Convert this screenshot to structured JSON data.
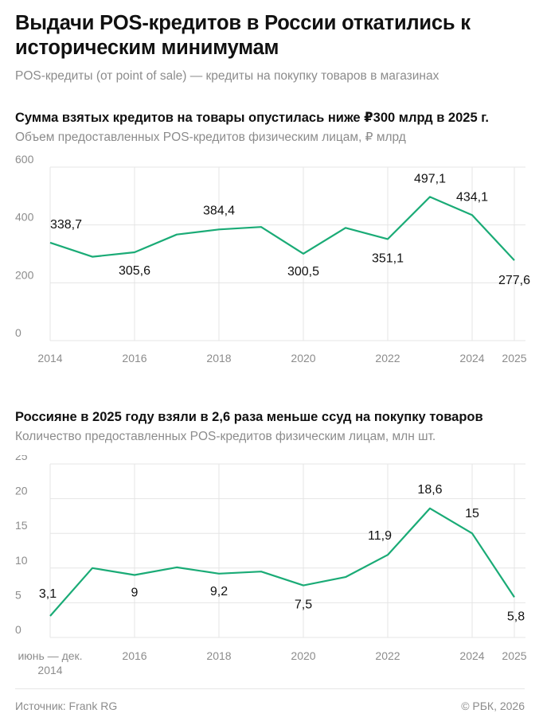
{
  "header": {
    "title": "Выдачи POS-кредитов в России откатились к историческим минимумам",
    "subtitle": "POS-кредиты (от point of sale) — кредиты на покупку товаров в магазинах"
  },
  "chart_data": [
    {
      "type": "line",
      "title": "Сумма взятых кредитов на товары опустилась ниже ₽300 млрд в 2025 г.",
      "subtitle": "Объем предоставленных POS-кредитов физическим лицам, ₽ млрд",
      "x": [
        "2014",
        "2015",
        "2016",
        "2017",
        "2018",
        "2019",
        "2020",
        "2021",
        "2022",
        "2023",
        "2024",
        "2025"
      ],
      "x_tick_labels": [
        "2014",
        "2016",
        "2018",
        "2020",
        "2022",
        "2024",
        "2025"
      ],
      "series": [
        {
          "values": [
            338.7,
            290,
            305.6,
            367,
            384.4,
            393,
            300.5,
            390,
            351.1,
            497.1,
            434.1,
            277.6
          ]
        }
      ],
      "data_labels": [
        {
          "index": 0,
          "text": "338,7"
        },
        {
          "index": 2,
          "text": "305,6"
        },
        {
          "index": 4,
          "text": "384,4"
        },
        {
          "index": 6,
          "text": "300,5"
        },
        {
          "index": 8,
          "text": "351,1"
        },
        {
          "index": 9,
          "text": "497,1"
        },
        {
          "index": 10,
          "text": "434,1"
        },
        {
          "index": 11,
          "text": "277,6"
        }
      ],
      "y_ticks": [
        "0",
        "200",
        "400",
        "600"
      ],
      "ylim": [
        0,
        600
      ],
      "grid": true,
      "line_color": "#1aab76"
    },
    {
      "type": "line",
      "title": "Россияне в 2025 году взяли в 2,6 раза меньше ссуд на покупку товаров",
      "subtitle": "Количество предоставленных POS-кредитов физическим лицам, млн шт.",
      "x": [
        "июнь — дек. 2014",
        "2015",
        "2016",
        "2017",
        "2018",
        "2019",
        "2020",
        "2021",
        "2022",
        "2023",
        "2024",
        "2025"
      ],
      "x_tick_labels": [
        "июнь — дек.\n2014",
        "2016",
        "2018",
        "2020",
        "2022",
        "2024",
        "2025"
      ],
      "series": [
        {
          "values": [
            3.1,
            10,
            9,
            10.1,
            9.2,
            9.5,
            7.5,
            8.7,
            11.9,
            18.6,
            15,
            5.8
          ]
        }
      ],
      "data_labels": [
        {
          "index": 0,
          "text": "3,1"
        },
        {
          "index": 2,
          "text": "9"
        },
        {
          "index": 4,
          "text": "9,2"
        },
        {
          "index": 6,
          "text": "7,5"
        },
        {
          "index": 8,
          "text": "11,9"
        },
        {
          "index": 9,
          "text": "18,6"
        },
        {
          "index": 10,
          "text": "15"
        },
        {
          "index": 11,
          "text": "5,8"
        }
      ],
      "y_ticks": [
        "0",
        "5",
        "10",
        "15",
        "20",
        "25"
      ],
      "ylim": [
        0,
        25
      ],
      "grid": true,
      "line_color": "#1aab76"
    }
  ],
  "footer": {
    "source": "Источник: Frank RG",
    "copyright": "© РБК, 2026"
  }
}
